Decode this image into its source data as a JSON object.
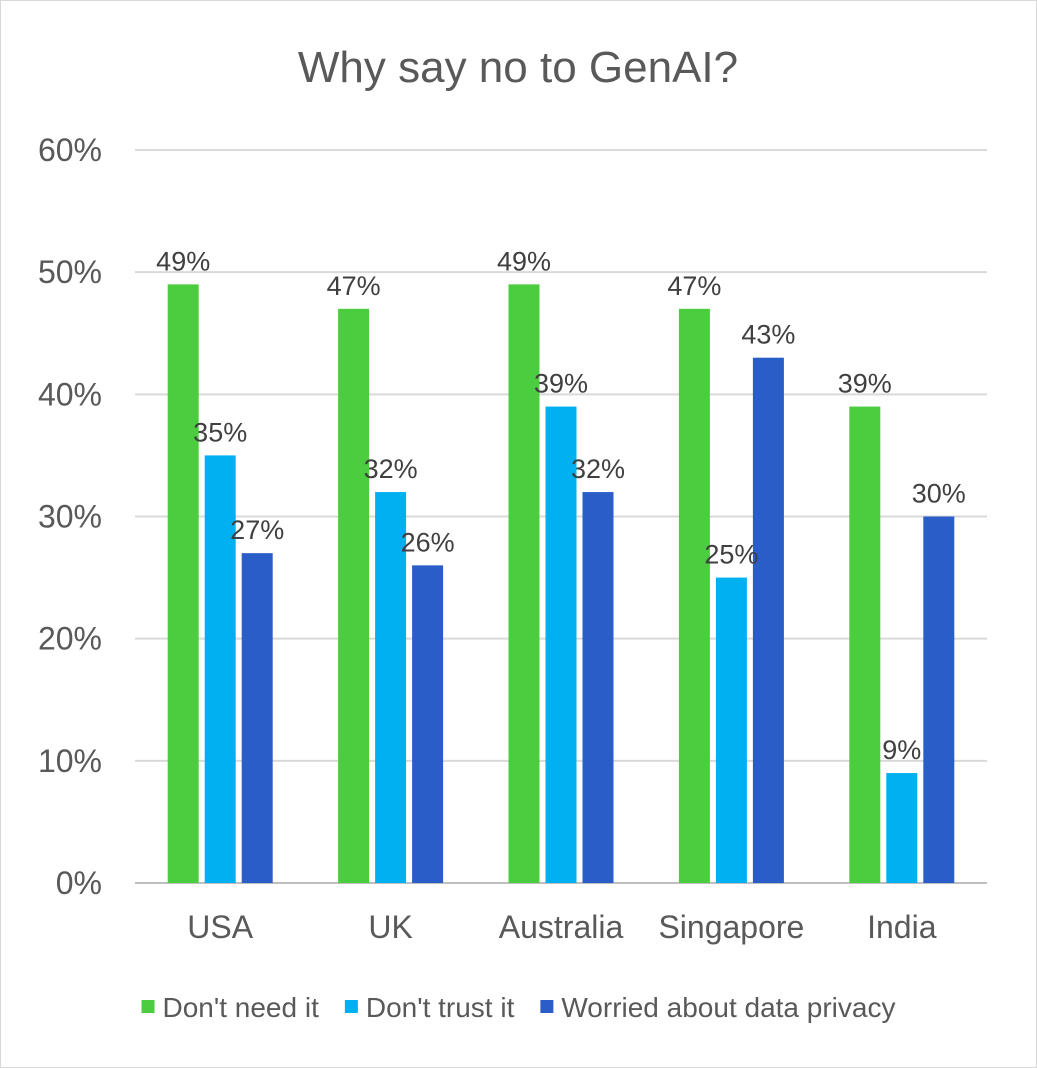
{
  "chart_data": {
    "type": "bar",
    "title": "Why say no to GenAI?",
    "categories": [
      "USA",
      "UK",
      "Australia",
      "Singapore",
      "India"
    ],
    "series": [
      {
        "name": "Don't need it",
        "color": "#4ccd3f",
        "values": [
          49,
          47,
          49,
          47,
          39
        ]
      },
      {
        "name": "Don't trust it",
        "color": "#00b0f0",
        "values": [
          35,
          32,
          39,
          25,
          9
        ]
      },
      {
        "name": "Worried about data privacy",
        "color": "#2a5dc8",
        "values": [
          27,
          26,
          32,
          43,
          30
        ]
      }
    ],
    "ylim": [
      0,
      60
    ],
    "yticks": [
      0,
      10,
      20,
      30,
      40,
      50,
      60
    ],
    "ytick_labels": [
      "0%",
      "10%",
      "20%",
      "30%",
      "40%",
      "50%",
      "60%"
    ],
    "value_suffix": "%",
    "grid": true,
    "legend": "bottom",
    "xlabel": "",
    "ylabel": ""
  }
}
